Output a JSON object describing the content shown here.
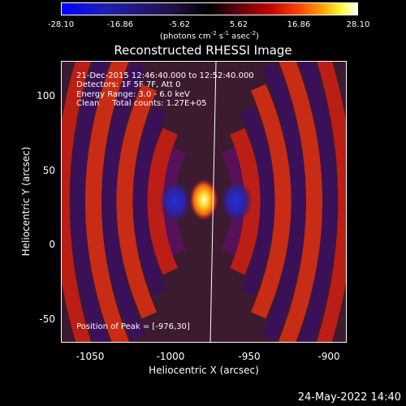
{
  "colorbar": {
    "ticks": [
      "-28.10",
      "-16.86",
      "-5.62",
      "5.62",
      "16.86",
      "28.10"
    ],
    "unit_text": "(photons cm",
    "unit_exp1": "-2",
    "unit_mid1": " s",
    "unit_exp2": "-1",
    "unit_mid2": " asec",
    "unit_exp3": "-2",
    "unit_end": ")"
  },
  "title": "Reconstructed RHESSI Image",
  "annotations": {
    "time_range": "21-Dec-2015 12:46:40.000 to 12:52:40.000",
    "detectors": "Detectors: 1F 5F 7F, Att 0",
    "energy": "Energy Range: 3.0 - 6.0 keV",
    "clean": "Clean     Total counts: 1.27E+05",
    "peak": "Position of Peak = [-976,30]"
  },
  "axes": {
    "xlabel": "Heliocentric X (arcsec)",
    "ylabel": "Heliocentric Y (arcsec)",
    "xticks": [
      "-1050",
      "-1000",
      "-950",
      "-900"
    ],
    "yticks": [
      "100",
      "50",
      "0",
      "-50"
    ]
  },
  "timestamp": "24-May-2022 14:40",
  "image": {
    "peak_x_arcsec": -976,
    "peak_y_arcsec": 30
  }
}
